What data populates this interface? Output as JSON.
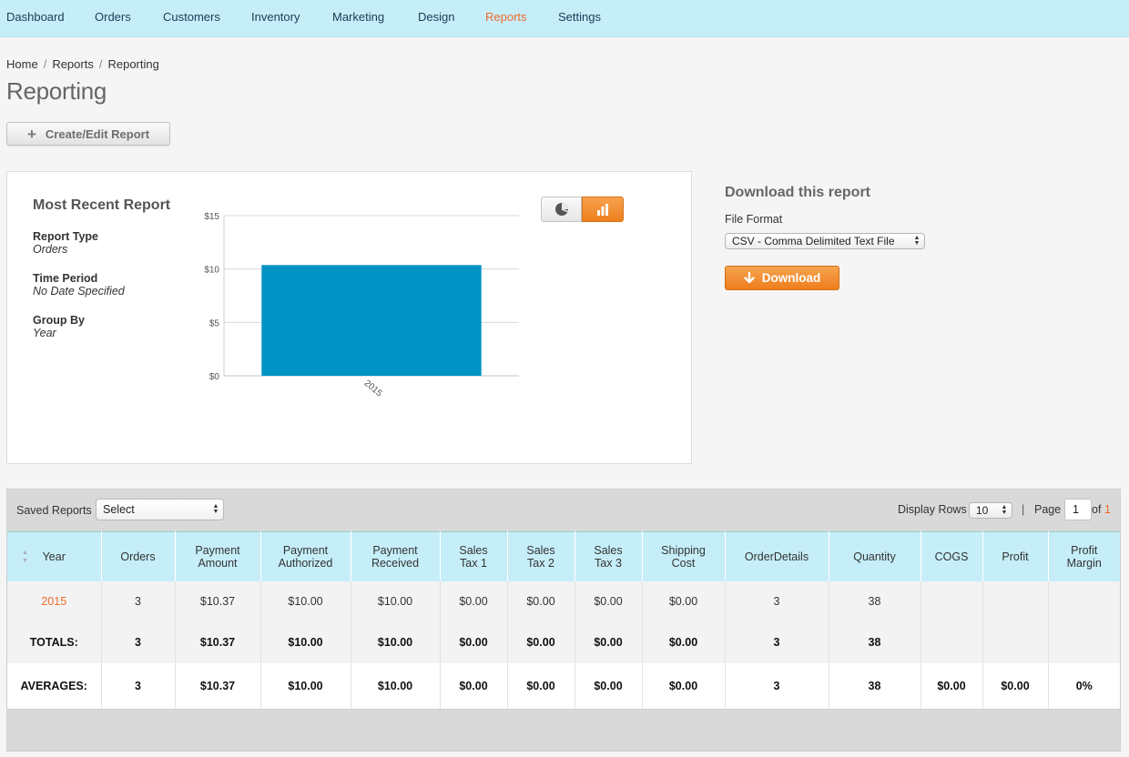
{
  "nav": {
    "items": [
      {
        "label": "Dashboard"
      },
      {
        "label": "Orders"
      },
      {
        "label": "Customers"
      },
      {
        "label": "Inventory"
      },
      {
        "label": "Marketing"
      },
      {
        "label": "Design"
      },
      {
        "label": "Reports",
        "active": true
      },
      {
        "label": "Settings"
      }
    ]
  },
  "breadcrumb": {
    "home": "Home",
    "reports": "Reports",
    "current": "Reporting",
    "separator": "/"
  },
  "page_title": "Reporting",
  "create_button": {
    "label": "Create/Edit Report",
    "icon": "plus-icon"
  },
  "recent": {
    "title": "Most Recent Report",
    "report_type_label": "Report Type",
    "report_type_value": "Orders",
    "time_period_label": "Time Period",
    "time_period_value": "No Date Specified",
    "group_by_label": "Group By",
    "group_by_value": "Year"
  },
  "chart_toggle": {
    "pie_icon": "pie-chart-icon",
    "bar_icon": "bar-chart-icon",
    "active": "bar"
  },
  "chart_data": {
    "type": "bar",
    "categories": [
      "2015"
    ],
    "values": [
      10.37
    ],
    "title": "",
    "xlabel": "",
    "ylabel": "",
    "ylim": [
      0,
      15
    ],
    "yticks": [
      "$0",
      "$5",
      "$10",
      "$15"
    ],
    "grid": true,
    "color": "#0093c4"
  },
  "download": {
    "title": "Download this report",
    "format_label": "File Format",
    "format_value": "CSV - Comma Delimited Text File",
    "button_label": "Download"
  },
  "table_controls": {
    "saved_label": "Saved Reports",
    "saved_value": "Select",
    "display_rows_label": "Display Rows",
    "display_rows_value": "10",
    "pipe": "|",
    "page_label": "Page",
    "page_value": "1",
    "of_label": "of",
    "of_value": "1"
  },
  "table": {
    "headers": [
      "Year",
      "Orders",
      "Payment Amount",
      "Payment Authorized",
      "Payment Received",
      "Sales Tax 1",
      "Sales Tax 2",
      "Sales Tax 3",
      "Shipping Cost",
      "OrderDetails",
      "Quantity",
      "COGS",
      "Profit",
      "Profit Margin"
    ],
    "rows": [
      [
        "2015",
        "3",
        "$10.37",
        "$10.00",
        "$10.00",
        "$0.00",
        "$0.00",
        "$0.00",
        "$0.00",
        "3",
        "38",
        "",
        "",
        ""
      ]
    ],
    "totals": [
      "TOTALS:",
      "3",
      "$10.37",
      "$10.00",
      "$10.00",
      "$0.00",
      "$0.00",
      "$0.00",
      "$0.00",
      "3",
      "38",
      "",
      "",
      ""
    ],
    "averages": [
      "AVERAGES:",
      "3",
      "$10.37",
      "$10.00",
      "$10.00",
      "$0.00",
      "$0.00",
      "$0.00",
      "$0.00",
      "3",
      "38",
      "$0.00",
      "$0.00",
      "0%"
    ]
  },
  "colors": {
    "accent": "#f06a2b",
    "nav_bg": "#c5eef9",
    "bar": "#0093c4",
    "button_orange": "#ef8424"
  }
}
